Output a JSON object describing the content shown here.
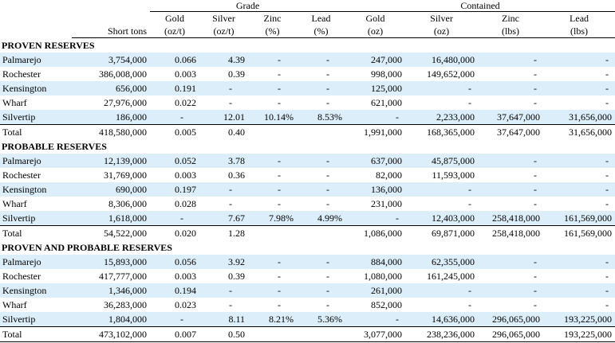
{
  "header": {
    "grade_label": "Grade",
    "contained_label": "Contained",
    "columns": [
      "Short tons",
      "Gold",
      "Silver",
      "Zinc",
      "Lead",
      "Gold",
      "Silver",
      "Zinc",
      "Lead"
    ],
    "units": [
      "",
      "(oz/t)",
      "(oz/t)",
      "(%)",
      "(%)",
      "(oz)",
      "(oz)",
      "(lbs)",
      "(lbs)"
    ]
  },
  "sections": [
    {
      "title": "PROVEN RESERVES",
      "rows": [
        {
          "name": "Palmarejo",
          "cells": [
            "3,754,000",
            "0.066",
            "4.39",
            "-",
            "-",
            "247,000",
            "16,480,000",
            "-",
            "-"
          ]
        },
        {
          "name": "Rochester",
          "cells": [
            "386,008,000",
            "0.003",
            "0.39",
            "-",
            "-",
            "998,000",
            "149,652,000",
            "-",
            "-"
          ]
        },
        {
          "name": "Kensington",
          "cells": [
            "656,000",
            "0.191",
            "-",
            "-",
            "-",
            "125,000",
            "-",
            "-",
            "-"
          ]
        },
        {
          "name": "Wharf",
          "cells": [
            "27,976,000",
            "0.022",
            "-",
            "-",
            "-",
            "621,000",
            "-",
            "-",
            "-"
          ]
        },
        {
          "name": "Silvertip",
          "cells": [
            "186,000",
            "-",
            "12.01",
            "10.14%",
            "8.53%",
            "-",
            "2,233,000",
            "37,647,000",
            "31,656,000"
          ]
        }
      ],
      "total": {
        "name": "Total",
        "cells": [
          "418,580,000",
          "0.005",
          "0.40",
          "",
          "",
          "1,991,000",
          "168,365,000",
          "37,647,000",
          "31,656,000"
        ]
      }
    },
    {
      "title": "PROBABLE RESERVES",
      "rows": [
        {
          "name": "Palmarejo",
          "cells": [
            "12,139,000",
            "0.052",
            "3.78",
            "-",
            "-",
            "637,000",
            "45,875,000",
            "-",
            "-"
          ]
        },
        {
          "name": "Rochester",
          "cells": [
            "31,769,000",
            "0.003",
            "0.36",
            "-",
            "-",
            "82,000",
            "11,593,000",
            "-",
            "-"
          ]
        },
        {
          "name": "Kensington",
          "cells": [
            "690,000",
            "0.197",
            "-",
            "-",
            "-",
            "136,000",
            "-",
            "-",
            "-"
          ]
        },
        {
          "name": "Wharf",
          "cells": [
            "8,306,000",
            "0.028",
            "-",
            "-",
            "-",
            "231,000",
            "-",
            "-",
            "-"
          ]
        },
        {
          "name": "Silvertip",
          "cells": [
            "1,618,000",
            "-",
            "7.67",
            "7.98%",
            "4.99%",
            "-",
            "12,403,000",
            "258,418,000",
            "161,569,000"
          ]
        }
      ],
      "total": {
        "name": "Total",
        "cells": [
          "54,522,000",
          "0.020",
          "1.28",
          "",
          "",
          "1,086,000",
          "69,871,000",
          "258,418,000",
          "161,569,000"
        ]
      }
    },
    {
      "title": "PROVEN AND PROBABLE RESERVES",
      "rows": [
        {
          "name": "Palmarejo",
          "cells": [
            "15,893,000",
            "0.056",
            "3.92",
            "-",
            "-",
            "884,000",
            "62,355,000",
            "-",
            "-"
          ]
        },
        {
          "name": "Rochester",
          "cells": [
            "417,777,000",
            "0.003",
            "0.39",
            "-",
            "-",
            "1,080,000",
            "161,245,000",
            "-",
            "-"
          ]
        },
        {
          "name": "Kensington",
          "cells": [
            "1,346,000",
            "0.194",
            "-",
            "-",
            "-",
            "261,000",
            "-",
            "-",
            "-"
          ]
        },
        {
          "name": "Wharf",
          "cells": [
            "36,283,000",
            "0.023",
            "-",
            "-",
            "-",
            "852,000",
            "-",
            "-",
            "-"
          ]
        },
        {
          "name": "Silvertip",
          "cells": [
            "1,804,000",
            "-",
            "8.11",
            "8.21%",
            "5.36%",
            "-",
            "14,636,000",
            "296,065,000",
            "193,225,000"
          ]
        }
      ],
      "total": {
        "name": "Total",
        "cells": [
          "473,102,000",
          "0.007",
          "0.50",
          "",
          "",
          "3,077,000",
          "238,236,000",
          "296,065,000",
          "193,225,000"
        ]
      }
    }
  ],
  "colors": {
    "shade": "#dbeef9"
  }
}
